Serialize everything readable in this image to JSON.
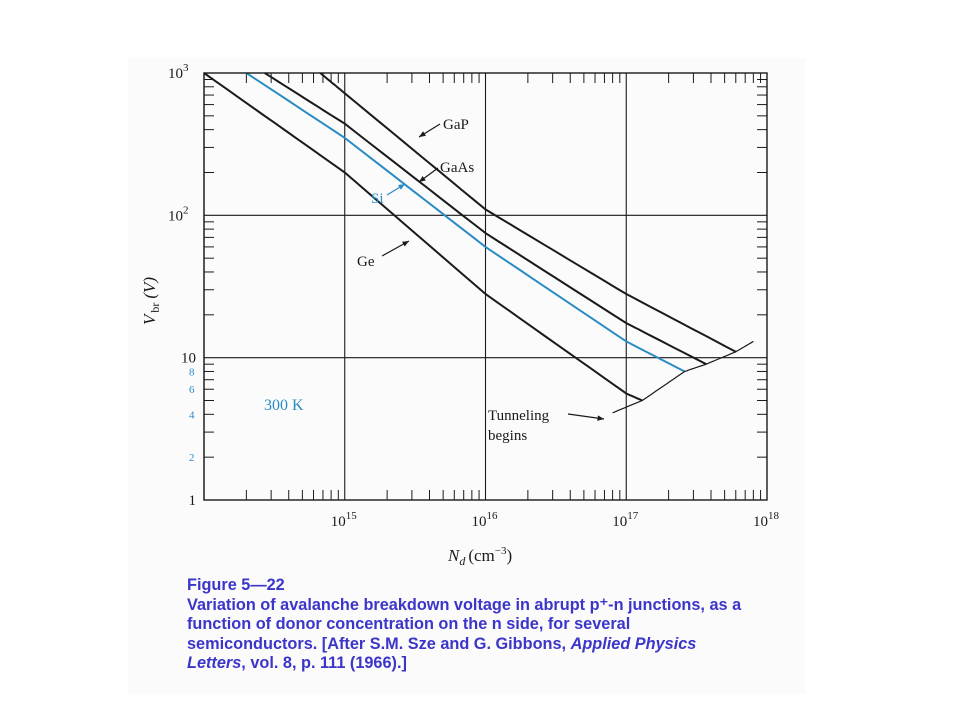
{
  "chart_data": {
    "type": "line",
    "xlabel": "N",
    "xlabel_sub": "d",
    "xlabel_unit": "(cm",
    "xlabel_unit_exp": "−3",
    "xlabel_unit_close": ")",
    "ylabel": "V",
    "ylabel_sub": "br",
    "ylabel_unit": "(V)",
    "x_scale": "log",
    "y_scale": "log",
    "xlim": [
      100000000000000.0,
      1e+18
    ],
    "ylim": [
      1,
      1000
    ],
    "grid": true,
    "x_ticks": [
      {
        "base": "10",
        "exp": "15"
      },
      {
        "base": "10",
        "exp": "16"
      },
      {
        "base": "10",
        "exp": "17"
      },
      {
        "base": "10",
        "exp": "18"
      }
    ],
    "y_ticks": [
      {
        "base": "1",
        "exp": ""
      },
      {
        "base": "10",
        "exp": ""
      },
      {
        "base": "10",
        "exp": "2"
      },
      {
        "base": "10",
        "exp": "3"
      }
    ],
    "y_minor_labels": [
      "2",
      "4",
      "6",
      "8"
    ],
    "temperature_label": "300 K",
    "series": [
      {
        "name": "GaP",
        "color": "#1a1a1a",
        "x": [
          670000000000000.0,
          1000000000000000.0,
          1e+16,
          1e+17,
          6e+17
        ],
        "y": [
          1000,
          720,
          110,
          28,
          11
        ]
      },
      {
        "name": "GaAs",
        "color": "#1a1a1a",
        "x": [
          270000000000000.0,
          1000000000000000.0,
          1e+16,
          1e+17,
          3.7e+17
        ],
        "y": [
          1000,
          440,
          75,
          17.5,
          9
        ]
      },
      {
        "name": "Si",
        "color": "#2a8bc4",
        "x": [
          200000000000000.0,
          1000000000000000.0,
          1e+16,
          1e+17,
          2.6e+17
        ],
        "y": [
          1000,
          350,
          60,
          13,
          8
        ]
      },
      {
        "name": "Ge",
        "color": "#1a1a1a",
        "x": [
          100000000000000.0,
          1000000000000000.0,
          1e+16,
          1e+17,
          1.3e+17
        ],
        "y": [
          1000,
          200,
          28,
          5.6,
          5
        ]
      }
    ],
    "tunneling_boundary": {
      "x": [
        8e+16,
        1.3e+17,
        2.6e+17,
        3.7e+17,
        6e+17,
        8e+17
      ],
      "y": [
        4.1,
        5,
        8,
        9,
        11,
        13
      ]
    },
    "annotations": {
      "gap": "GaP",
      "gaas": "GaAs",
      "si": "Si",
      "ge": "Ge",
      "tunneling_line1": "Tunneling",
      "tunneling_line2": "begins"
    }
  },
  "caption": {
    "title": "Figure 5—22",
    "line1": "Variation of avalanche breakdown voltage in abrupt p⁺-n junctions, as a",
    "line2": "function of donor concentration on the n side, for several",
    "line3": "semiconductors. [After S.M. Sze and G. Gibbons, ",
    "line3_italic": "Applied Physics",
    "line4_italic": "Letters",
    "line4": ", vol. 8, p. 111 (1966).]"
  }
}
